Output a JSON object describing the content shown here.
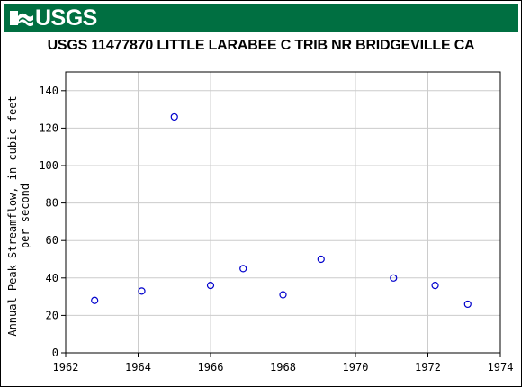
{
  "banner": {
    "logo_text": "USGS",
    "color": "#006f41"
  },
  "chart_data": {
    "type": "scatter",
    "title": "USGS 11477870 LITTLE LARABEE C TRIB NR BRIDGEVILLE CA",
    "xlabel": "",
    "ylabel_lines": [
      "Annual Peak Streamflow, in cubic feet",
      "per second"
    ],
    "xlim": [
      1962,
      1974
    ],
    "ylim": [
      0,
      150
    ],
    "xticks": [
      "1962",
      "1964",
      "1966",
      "1968",
      "1970",
      "1972",
      "1974"
    ],
    "yticks": [
      "0",
      "20",
      "40",
      "60",
      "80",
      "100",
      "120",
      "140"
    ],
    "grid": true,
    "marker": "open-circle",
    "marker_color": "#0000cc",
    "points": [
      {
        "x": 1962.8,
        "y": 28
      },
      {
        "x": 1964.1,
        "y": 33
      },
      {
        "x": 1965.0,
        "y": 126
      },
      {
        "x": 1966.0,
        "y": 36
      },
      {
        "x": 1966.9,
        "y": 45
      },
      {
        "x": 1968.0,
        "y": 31
      },
      {
        "x": 1969.05,
        "y": 50
      },
      {
        "x": 1971.05,
        "y": 40
      },
      {
        "x": 1972.2,
        "y": 36
      },
      {
        "x": 1973.1,
        "y": 26
      }
    ]
  }
}
